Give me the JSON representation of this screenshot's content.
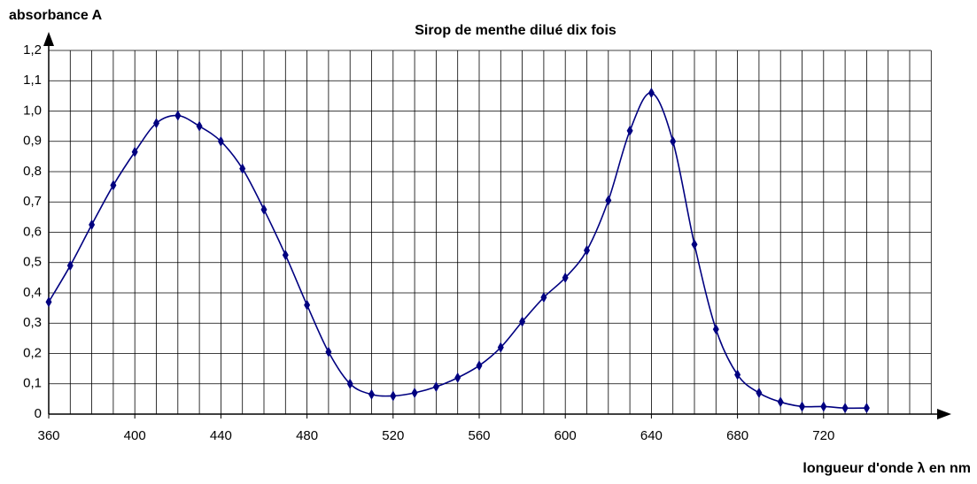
{
  "chart_data": {
    "type": "line",
    "title": "Sirop de menthe dilué dix fois",
    "ylabel": "absorbance A",
    "xlabel": "longueur d'onde λ en nm",
    "x": [
      360,
      370,
      380,
      390,
      400,
      410,
      420,
      430,
      440,
      450,
      460,
      470,
      480,
      490,
      500,
      510,
      520,
      530,
      540,
      550,
      560,
      570,
      580,
      590,
      600,
      610,
      620,
      630,
      640,
      650,
      660,
      670,
      680,
      690,
      700,
      710,
      720,
      730,
      740
    ],
    "series": [
      {
        "name": "absorbance",
        "color": "#000080",
        "values": [
          0.37,
          0.49,
          0.625,
          0.755,
          0.865,
          0.96,
          0.985,
          0.95,
          0.9,
          0.81,
          0.675,
          0.525,
          0.36,
          0.205,
          0.1,
          0.065,
          0.06,
          0.07,
          0.09,
          0.12,
          0.16,
          0.22,
          0.305,
          0.385,
          0.45,
          0.54,
          0.705,
          0.935,
          1.06,
          0.9,
          0.56,
          0.28,
          0.13,
          0.07,
          0.04,
          0.025,
          0.025,
          0.02,
          0.02
        ]
      }
    ],
    "xlim": [
      360,
      770
    ],
    "ylim": [
      0,
      1.2
    ],
    "xticks": [
      360,
      400,
      440,
      480,
      520,
      560,
      600,
      640,
      680,
      720
    ],
    "xminorticks": [
      360,
      370,
      380,
      390,
      400,
      410,
      420,
      430,
      440,
      450,
      460,
      470,
      480,
      490,
      500,
      510,
      520,
      530,
      540,
      550,
      560,
      570,
      580,
      590,
      600,
      610,
      620,
      630,
      640,
      650,
      660,
      670,
      680,
      690,
      700,
      710,
      720,
      730,
      740,
      750,
      760,
      770
    ],
    "yticks": [
      0,
      {
        "value": 0.1,
        "label": "0,1"
      },
      {
        "value": 0.2,
        "label": "0,2"
      },
      {
        "value": 0.3,
        "label": "0,3"
      },
      {
        "value": 0.4,
        "label": "0,4"
      },
      {
        "value": 0.5,
        "label": "0,5"
      },
      {
        "value": 0.6,
        "label": "0,6"
      },
      {
        "value": 0.7,
        "label": "0,7"
      },
      {
        "value": 0.8,
        "label": "0,8"
      },
      {
        "value": 0.9,
        "label": "0,9"
      },
      {
        "value": 1.0,
        "label": "1,0"
      },
      {
        "value": 1.1,
        "label": "1,1"
      },
      {
        "value": 1.2,
        "label": "1,2"
      }
    ],
    "grid": true
  }
}
